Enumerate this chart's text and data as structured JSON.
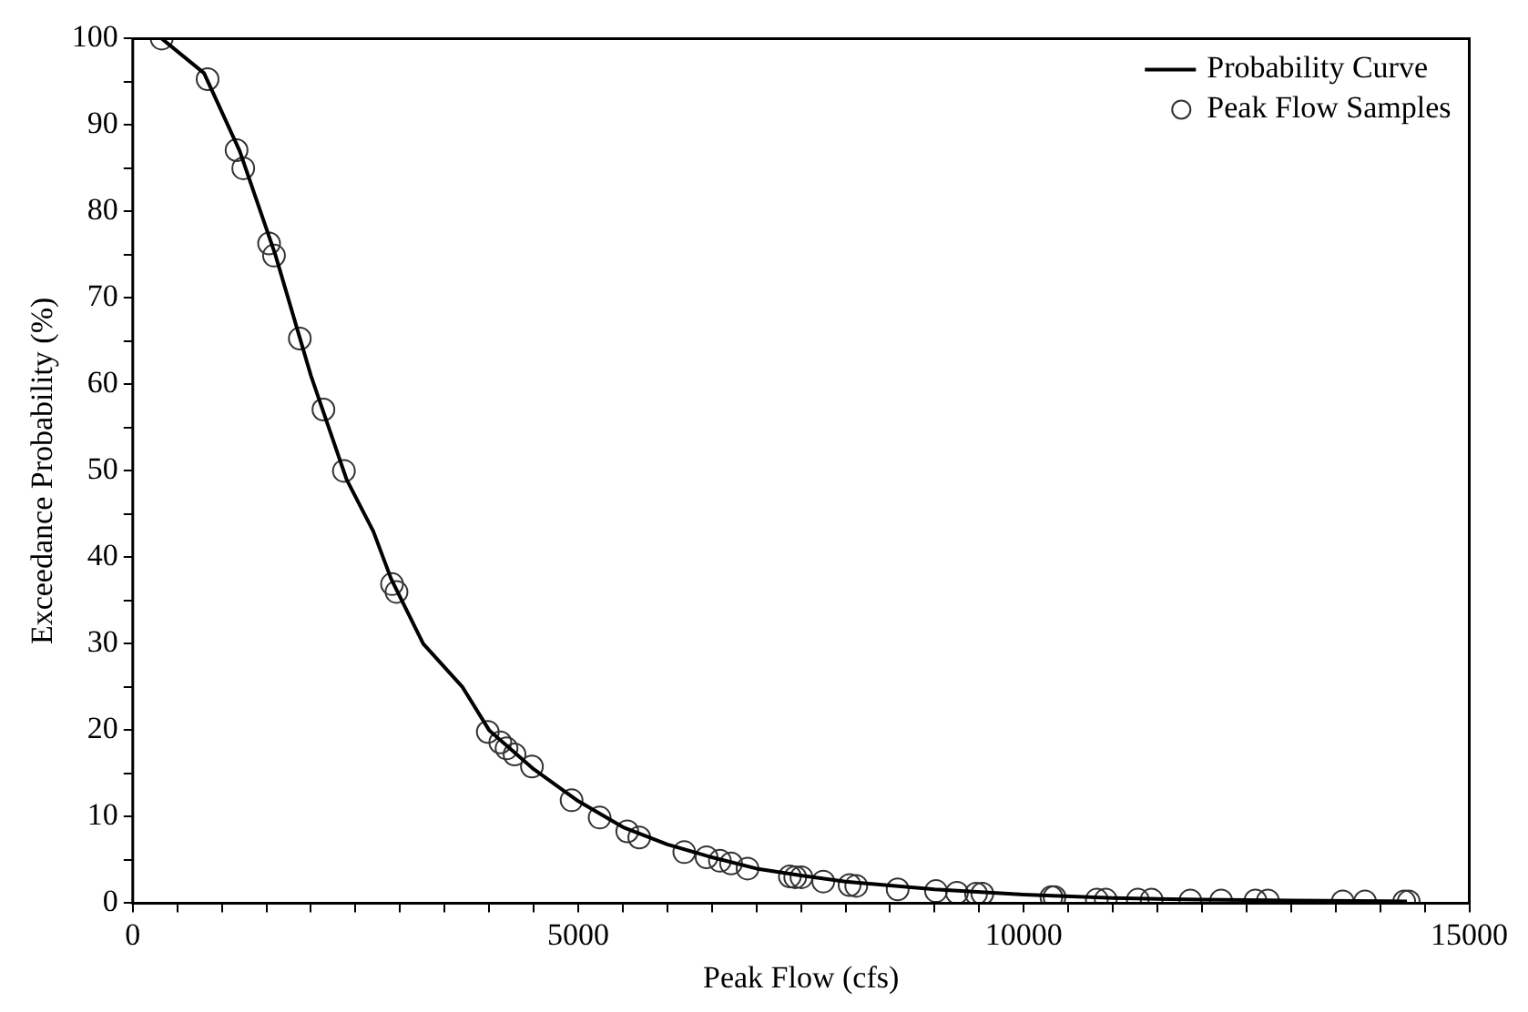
{
  "chart_data": {
    "type": "scatter",
    "xlabel": "Peak Flow (cfs)",
    "ylabel": "Exceedance Probability (%)",
    "xlim": [
      0,
      15000
    ],
    "ylim": [
      0,
      100
    ],
    "xticks": [
      0,
      {
        "value": 500,
        "label": null
      },
      {
        "value": 1000,
        "label": null
      },
      {
        "value": 1500,
        "label": null
      },
      {
        "value": 2000,
        "label": null
      },
      {
        "value": 2500,
        "label": null
      },
      {
        "value": 3000,
        "label": null
      },
      {
        "value": 3500,
        "label": null
      },
      {
        "value": 4000,
        "label": null
      },
      {
        "value": 4500,
        "label": null
      },
      5000,
      {
        "value": 5500,
        "label": null
      },
      {
        "value": 6000,
        "label": null
      },
      {
        "value": 6500,
        "label": null
      },
      {
        "value": 7000,
        "label": null
      },
      {
        "value": 7500,
        "label": null
      },
      {
        "value": 8000,
        "label": null
      },
      {
        "value": 8500,
        "label": null
      },
      {
        "value": 9000,
        "label": null
      },
      {
        "value": 9500,
        "label": null
      },
      10000,
      {
        "value": 10500,
        "label": null
      },
      {
        "value": 11000,
        "label": null
      },
      {
        "value": 11500,
        "label": null
      },
      {
        "value": 12000,
        "label": null
      },
      {
        "value": 12500,
        "label": null
      },
      {
        "value": 13000,
        "label": null
      },
      {
        "value": 13500,
        "label": null
      },
      {
        "value": 14000,
        "label": null
      },
      {
        "value": 14500,
        "label": null
      },
      15000
    ],
    "yticks": [
      0,
      {
        "value": 5,
        "label": null
      },
      10,
      {
        "value": 15,
        "label": null
      },
      20,
      {
        "value": 25,
        "label": null
      },
      30,
      {
        "value": 35,
        "label": null
      },
      40,
      {
        "value": 45,
        "label": null
      },
      50,
      {
        "value": 55,
        "label": null
      },
      60,
      {
        "value": 65,
        "label": null
      },
      70,
      {
        "value": 75,
        "label": null
      },
      80,
      {
        "value": 85,
        "label": null
      },
      90,
      {
        "value": 95,
        "label": null
      },
      100
    ],
    "grid": false,
    "legend": "top right",
    "series": [
      {
        "name": "Probability Curve",
        "type": "line",
        "color": "#000000",
        "marker": "none",
        "line_style": "solid",
        "x": [
          325,
          800,
          1200,
          1600,
          2000,
          2400,
          2700,
          2900,
          3260,
          3700,
          4000,
          4500,
          5000,
          5500,
          6000,
          6500,
          7000,
          7500,
          8000,
          9000,
          10000,
          11000,
          12000,
          13000,
          14300
        ],
        "values": [
          100,
          96,
          87,
          75,
          61,
          49,
          43,
          37.5,
          30,
          25,
          20,
          15.5,
          11.8,
          8.8,
          6.8,
          5.3,
          4.0,
          3.2,
          2.5,
          1.6,
          1.0,
          0.6,
          0.4,
          0.3,
          0.2
        ]
      },
      {
        "name": "Peak Flow Samples",
        "color": "#333333",
        "marker": "circle",
        "x": [
          325,
          840,
          1165,
          1240,
          1530,
          1585,
          1875,
          2140,
          2370,
          2910,
          2960,
          3985,
          4125,
          4195,
          4285,
          4480,
          4925,
          5240,
          5550,
          5685,
          6190,
          6440,
          6590,
          6715,
          6900,
          7375,
          7435,
          7505,
          7750,
          8045,
          8120,
          8585,
          9015,
          9250,
          9465,
          9535,
          10310,
          10345,
          10820,
          10920,
          11280,
          11435,
          11870,
          12215,
          12600,
          12740,
          13580,
          13830,
          14270,
          14320
        ],
        "values": [
          100,
          95.3,
          87.1,
          85.0,
          76.3,
          74.9,
          65.3,
          57.1,
          50,
          36.9,
          36.0,
          19.8,
          18.6,
          17.9,
          17.2,
          15.8,
          11.9,
          9.9,
          8.3,
          7.6,
          5.9,
          5.3,
          4.9,
          4.6,
          4.0,
          3.1,
          3.0,
          3.0,
          2.5,
          2.1,
          2.0,
          1.6,
          1.4,
          1.2,
          1.1,
          1.1,
          0.7,
          0.7,
          0.4,
          0.4,
          0.4,
          0.4,
          0.3,
          0.3,
          0.3,
          0.3,
          0.2,
          0.2,
          0.2,
          0.2
        ]
      }
    ]
  }
}
